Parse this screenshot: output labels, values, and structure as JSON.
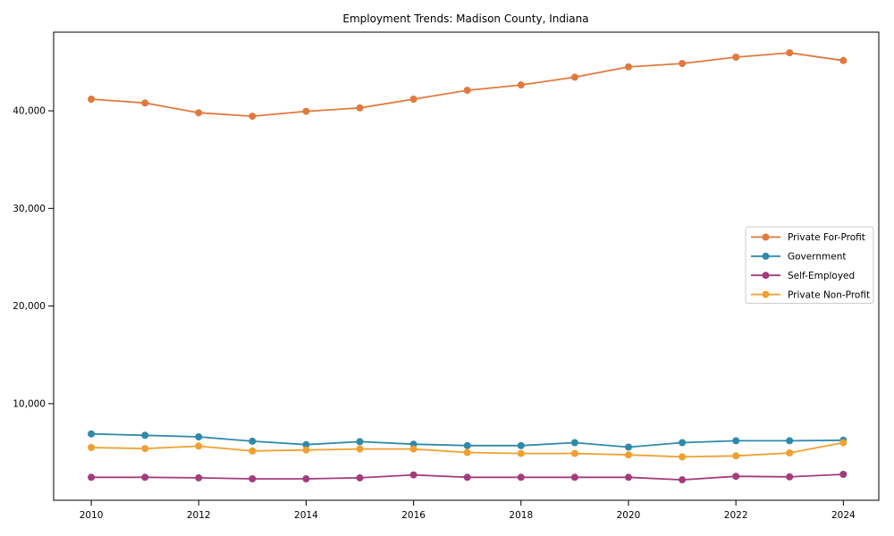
{
  "chart_data": {
    "type": "line",
    "title": "Employment Trends: Madison County, Indiana",
    "x": [
      2010,
      2011,
      2012,
      2013,
      2014,
      2015,
      2016,
      2017,
      2018,
      2019,
      2020,
      2021,
      2022,
      2023,
      2024
    ],
    "series": [
      {
        "name": "Private For-Profit",
        "color": "#e1793e",
        "values": [
          41200,
          40800,
          39800,
          39450,
          39950,
          40300,
          41200,
          42100,
          42650,
          43450,
          44500,
          44850,
          45500,
          45950,
          45150
        ]
      },
      {
        "name": "Government",
        "color": "#2f89a9",
        "values": [
          6900,
          6750,
          6600,
          6150,
          5800,
          6100,
          5850,
          5700,
          5700,
          6000,
          5550,
          6000,
          6200,
          6200,
          6250
        ]
      },
      {
        "name": "Self-Employed",
        "color": "#a33c7c",
        "values": [
          2450,
          2450,
          2400,
          2300,
          2300,
          2400,
          2700,
          2450,
          2450,
          2450,
          2450,
          2200,
          2550,
          2500,
          2750
        ]
      },
      {
        "name": "Private Non-Profit",
        "color": "#f0a02f",
        "values": [
          5500,
          5400,
          5650,
          5150,
          5250,
          5350,
          5350,
          5000,
          4900,
          4900,
          4750,
          4550,
          4650,
          4950,
          6000
        ]
      }
    ],
    "xticks": {
      "values": [
        2010,
        2012,
        2014,
        2016,
        2018,
        2020,
        2022,
        2024
      ],
      "labels": [
        "2010",
        "2012",
        "2014",
        "2016",
        "2018",
        "2020",
        "2022",
        "2024"
      ]
    },
    "yticks": {
      "values": [
        10000,
        20000,
        30000,
        40000
      ],
      "labels": [
        "10,000",
        "20,000",
        "30,000",
        "40,000"
      ]
    },
    "xlim": [
      2009.3,
      2024.66
    ],
    "ylim": [
      100,
      48060
    ],
    "grid": false,
    "legend_position": "center right",
    "marker": "circle",
    "axis_color": "#000000"
  }
}
